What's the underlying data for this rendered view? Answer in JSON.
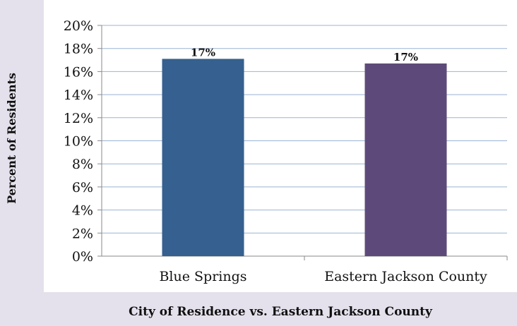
{
  "chart_data": {
    "type": "bar",
    "categories": [
      "Blue Springs",
      "Eastern Jackson County"
    ],
    "values": [
      17.1,
      16.7
    ],
    "data_labels": [
      "17%",
      "17%"
    ],
    "title": "",
    "xlabel": "City of Residence vs. Eastern Jackson County",
    "ylabel": "Percent of Residents",
    "ylim": [
      0,
      20
    ],
    "yticks": [
      0,
      2,
      4,
      6,
      8,
      10,
      12,
      14,
      16,
      18,
      20
    ],
    "ytick_labels": [
      "0%",
      "2%",
      "4%",
      "6%",
      "8%",
      "10%",
      "12%",
      "14%",
      "16%",
      "18%",
      "20%"
    ],
    "grid": true,
    "legend": "none",
    "colors": [
      "#35608f",
      "#5e4a7a"
    ],
    "gridline_color": "#9bb3d2",
    "plot_background": "#ffffff",
    "page_background": "#e4e1ec"
  }
}
